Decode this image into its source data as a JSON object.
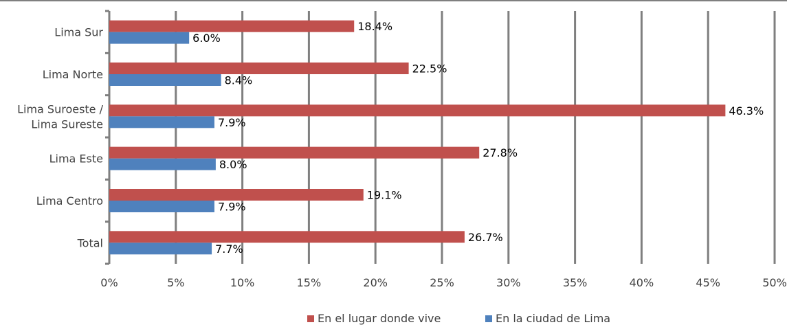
{
  "chart_data": {
    "type": "bar",
    "orientation": "horizontal",
    "categories": [
      "Lima Sur",
      "Lima Norte",
      "Lima Suroeste / Lima Sureste",
      "Lima Este",
      "Lima Centro",
      "Total"
    ],
    "category_lines": [
      [
        "Lima Sur"
      ],
      [
        "Lima Norte"
      ],
      [
        "Lima Suroeste /",
        "Lima Sureste"
      ],
      [
        "Lima Este"
      ],
      [
        "Lima Centro"
      ],
      [
        "Total"
      ]
    ],
    "series": [
      {
        "name": "En el lugar donde vive",
        "color": "#c0504d",
        "values": [
          18.4,
          22.5,
          46.3,
          27.8,
          19.1,
          26.7
        ],
        "labels": [
          "18.4%",
          "22.5%",
          "46.3%",
          "27.8%",
          "19.1%",
          "26.7%"
        ]
      },
      {
        "name": "En la ciudad de Lima",
        "color": "#4f81bd",
        "values": [
          6.0,
          8.4,
          7.9,
          8.0,
          7.9,
          7.7
        ],
        "labels": [
          "6.0%",
          "8.4%",
          "7.9%",
          "8.0%",
          "7.9%",
          "7.7%"
        ]
      }
    ],
    "xlim": [
      0,
      50
    ],
    "xticks": [
      0,
      5,
      10,
      15,
      20,
      25,
      30,
      35,
      40,
      45,
      50
    ],
    "xtick_labels": [
      "0%",
      "5%",
      "10%",
      "15%",
      "20%",
      "25%",
      "30%",
      "35%",
      "40%",
      "45%",
      "50%"
    ],
    "grid": true,
    "gridline_color": "#7f7f7f",
    "legend_position": "bottom"
  }
}
